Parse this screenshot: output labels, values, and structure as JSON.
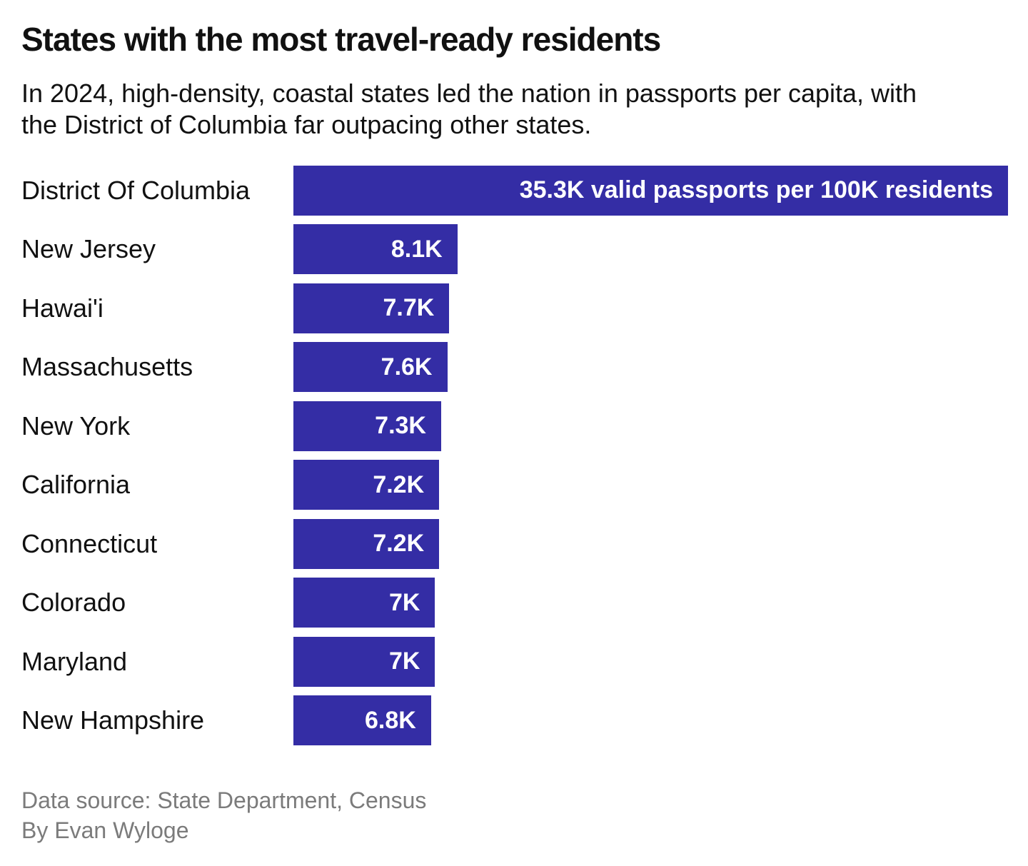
{
  "header": {
    "title": "States with the most travel-ready residents",
    "subtitle": "In 2024, high-density, coastal states led the nation in passports per capita, with the District of Columbia far outpacing other states."
  },
  "footer": {
    "source": "Data source: State Department, Census",
    "byline": "By Evan Wyloge"
  },
  "colors": {
    "bar_fill": "#342da5",
    "bar_text": "#ffffff",
    "label_text": "#111111",
    "footer_text": "#7b7b7b",
    "background": "#ffffff"
  },
  "chart_data": {
    "type": "bar",
    "orientation": "horizontal",
    "title": "States with the most travel-ready residents",
    "unit": "valid passports per 100K residents",
    "x_max": 35300,
    "grid": false,
    "legend": false,
    "categories": [
      "District Of Columbia",
      "New Jersey",
      "Hawai'i",
      "Massachusetts",
      "New York",
      "California",
      "Connecticut",
      "Colorado",
      "Maryland",
      "New Hampshire"
    ],
    "values": [
      35300,
      8100,
      7700,
      7600,
      7300,
      7200,
      7200,
      7000,
      7000,
      6800
    ],
    "bar_labels": [
      "35.3K valid passports per 100K residents",
      "8.1K",
      "7.7K",
      "7.6K",
      "7.3K",
      "7.2K",
      "7.2K",
      "7K",
      "7K",
      "6.8K"
    ]
  }
}
